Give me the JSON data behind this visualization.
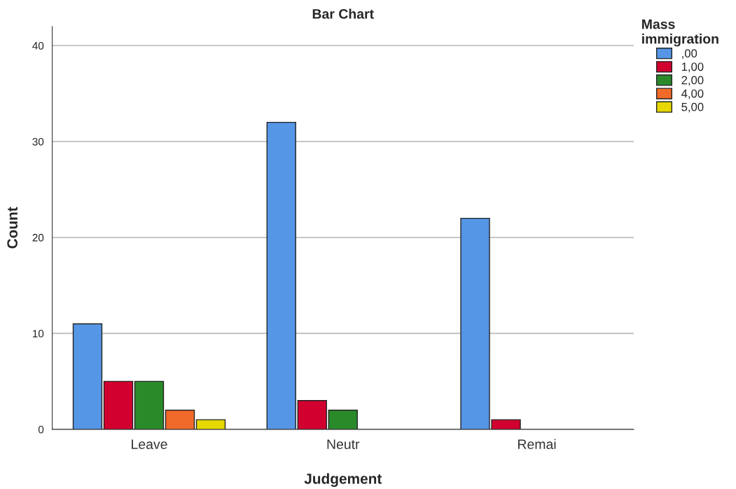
{
  "chart_data": {
    "type": "bar",
    "title": "Bar Chart",
    "xlabel": "Judgement",
    "ylabel": "Count",
    "legend_title": "Mass immigration",
    "categories": [
      "Leave",
      "Neutr",
      "Remai"
    ],
    "series": [
      {
        "name": ",00",
        "color": "#5596e6",
        "values": [
          11,
          32,
          22
        ]
      },
      {
        "name": "1,00",
        "color": "#d2002f",
        "values": [
          5,
          3,
          1
        ]
      },
      {
        "name": "2,00",
        "color": "#2a8a2a",
        "values": [
          5,
          2,
          null
        ]
      },
      {
        "name": "4,00",
        "color": "#f26a2a",
        "values": [
          2,
          null,
          null
        ]
      },
      {
        "name": "5,00",
        "color": "#e6d800",
        "values": [
          1,
          null,
          null
        ]
      }
    ],
    "ylim": [
      0,
      42
    ],
    "yticks": [
      0,
      10,
      20,
      30,
      40
    ],
    "grid": "y",
    "legend": "right"
  }
}
